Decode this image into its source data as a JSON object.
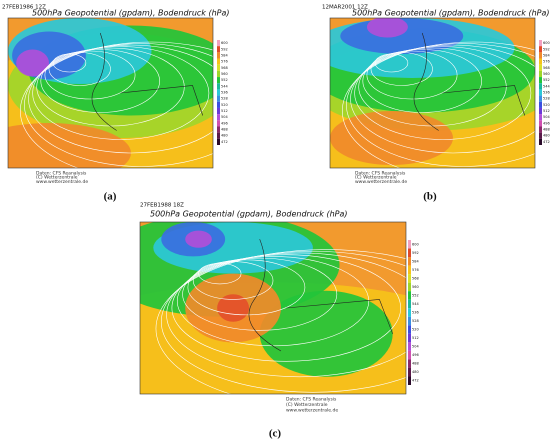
{
  "figure": {
    "panels": [
      {
        "datetime": "27FEB1986 12Z",
        "title": "500hPa Geopotential (gpdam), Bodendruck (hPa)",
        "credits": [
          "Daten: CFS Reanalysis",
          "(C) Wetterzentrale",
          "www.wetterzentrale.de"
        ],
        "caption": "(a)"
      },
      {
        "datetime": "12MAR2001 12Z",
        "title": "500hPa Geopotential (gpdam), Bodendruck (hPa)",
        "credits": [
          "Daten: CFS Reanalysis",
          "(C) Wetterzentrale",
          "www.wetterzentrale.de"
        ],
        "caption": "(b)"
      },
      {
        "datetime": "27FEB1988 18Z",
        "title": "500hPa Geopotential (gpdam), Bodendruck (hPa)",
        "credits": [
          "Daten: CFS Reanalysis",
          "(C) Wetterzentrale",
          "www.wetterzentrale.de"
        ],
        "caption": "(c)"
      }
    ],
    "colorbar_labels": [
      "600",
      "592",
      "584",
      "576",
      "568",
      "560",
      "552",
      "544",
      "536",
      "528",
      "520",
      "512",
      "504",
      "496",
      "488",
      "480",
      "472"
    ]
  }
}
